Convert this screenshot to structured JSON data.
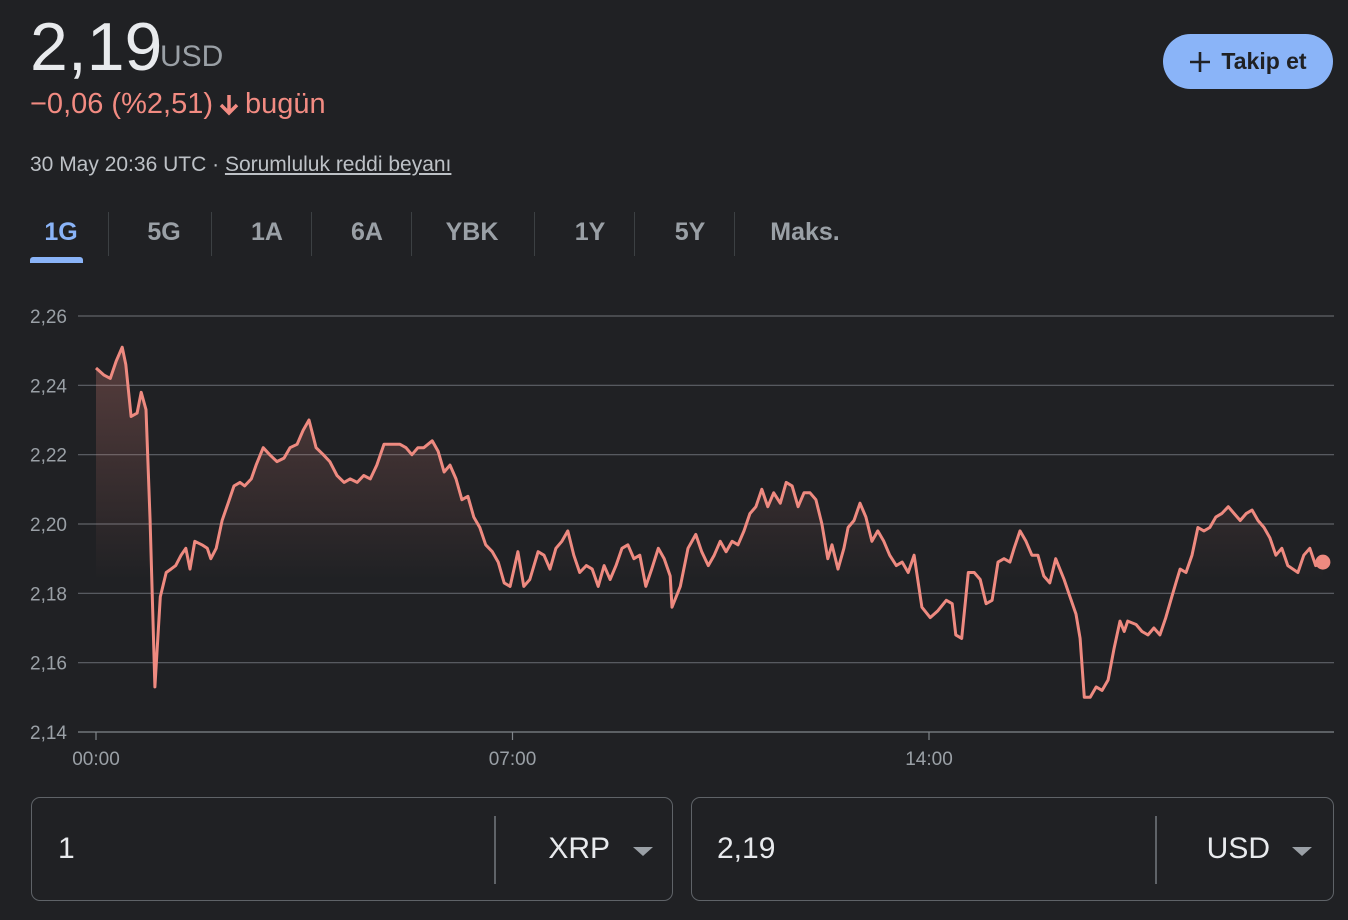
{
  "header": {
    "price": "2,19",
    "currency": "USD",
    "change": "−0,06 (%2,51)",
    "change_period": "bugün",
    "timestamp": "30 May 20:36 UTC",
    "separator": "·",
    "disclaimer": "Sorumluluk reddi beyanı",
    "follow_button": "Takip et"
  },
  "tabs": [
    "1G",
    "5G",
    "1A",
    "6A",
    "YBK",
    "1Y",
    "5Y",
    "Maks."
  ],
  "chart_data": {
    "type": "line",
    "color": "#ee8a80",
    "grid": true,
    "xlim": [
      0,
      20.8
    ],
    "ylim": [
      2.14,
      2.26
    ],
    "xticks": [
      {
        "value": 0,
        "label": "00:00"
      },
      {
        "value": 7,
        "label": "07:00"
      },
      {
        "value": 14,
        "label": "14:00"
      }
    ],
    "yticks": [
      {
        "value": 2.14,
        "label": "2,14"
      },
      {
        "value": 2.16,
        "label": "2,16"
      },
      {
        "value": 2.18,
        "label": "2,18"
      },
      {
        "value": 2.2,
        "label": "2,20"
      },
      {
        "value": 2.22,
        "label": "2,22"
      },
      {
        "value": 2.24,
        "label": "2,24"
      },
      {
        "value": 2.26,
        "label": "2,26"
      }
    ],
    "x": [
      0,
      0.13,
      0.24,
      0.34,
      0.44,
      0.5,
      0.59,
      0.69,
      0.76,
      0.84,
      0.91,
      0.99,
      1.08,
      1.18,
      1.26,
      1.34,
      1.43,
      1.51,
      1.58,
      1.66,
      1.78,
      1.87,
      1.93,
      2.02,
      2.12,
      2.22,
      2.32,
      2.42,
      2.5,
      2.61,
      2.69,
      2.81,
      2.92,
      3.04,
      3.16,
      3.26,
      3.38,
      3.48,
      3.58,
      3.7,
      3.82,
      3.93,
      4.05,
      4.17,
      4.27,
      4.39,
      4.5,
      4.61,
      4.72,
      4.84,
      4.96,
      5.11,
      5.21,
      5.31,
      5.41,
      5.51,
      5.65,
      5.75,
      5.85,
      5.95,
      6.05,
      6.15,
      6.25,
      6.35,
      6.45,
      6.55,
      6.66,
      6.76,
      6.86,
      6.96,
      7.09,
      7.19,
      7.29,
      7.43,
      7.53,
      7.63,
      7.73,
      7.83,
      7.93,
      8.03,
      8.13,
      8.24,
      8.34,
      8.44,
      8.54,
      8.64,
      8.74,
      8.84,
      8.94,
      9.04,
      9.14,
      9.24,
      9.34,
      9.45,
      9.55,
      9.65,
      9.68,
      9.82,
      9.95,
      10.08,
      10.18,
      10.29,
      10.39,
      10.49,
      10.59,
      10.69,
      10.79,
      10.89,
      10.99,
      11.09,
      11.19,
      11.29,
      11.39,
      11.5,
      11.6,
      11.7,
      11.8,
      11.9,
      12.0,
      12.1,
      12.2,
      12.3,
      12.37,
      12.47,
      12.57,
      12.64,
      12.74,
      12.84,
      12.94,
      13.04,
      13.14,
      13.24,
      13.34,
      13.45,
      13.55,
      13.65,
      13.75,
      13.88,
      14.02,
      14.15,
      14.29,
      14.39,
      14.45,
      14.55,
      14.66,
      14.76,
      14.86,
      14.96,
      15.06,
      15.16,
      15.26,
      15.36,
      15.43,
      15.53,
      15.63,
      15.73,
      15.83,
      15.93,
      16.03,
      16.13,
      16.27,
      16.37,
      16.47,
      16.54,
      16.61,
      16.71,
      16.81,
      16.91,
      17.01,
      17.11,
      17.21,
      17.28,
      17.34,
      17.48,
      17.58,
      17.68,
      17.78,
      17.88,
      17.98,
      18.08,
      18.15,
      18.22,
      18.32,
      18.42,
      18.52,
      18.62,
      18.72,
      18.82,
      18.92,
      19.03,
      19.13,
      19.23,
      19.33,
      19.43,
      19.53,
      19.63,
      19.73,
      19.83,
      19.93,
      20.03,
      20.2,
      20.3,
      20.4,
      20.5,
      20.62
    ],
    "values": [
      2.245,
      2.243,
      2.242,
      2.247,
      2.251,
      2.246,
      2.231,
      2.232,
      2.238,
      2.233,
      2.201,
      2.153,
      2.179,
      2.186,
      2.187,
      2.188,
      2.191,
      2.193,
      2.187,
      2.195,
      2.194,
      2.193,
      2.19,
      2.193,
      2.201,
      2.206,
      2.211,
      2.212,
      2.211,
      2.213,
      2.217,
      2.222,
      2.22,
      2.218,
      2.219,
      2.222,
      2.223,
      2.227,
      2.23,
      2.222,
      2.22,
      2.218,
      2.214,
      2.212,
      2.213,
      2.212,
      2.214,
      2.213,
      2.217,
      2.223,
      2.223,
      2.223,
      2.222,
      2.22,
      2.222,
      2.222,
      2.224,
      2.221,
      2.215,
      2.217,
      2.213,
      2.207,
      2.208,
      2.202,
      2.199,
      2.194,
      2.192,
      2.189,
      2.183,
      2.182,
      2.192,
      2.182,
      2.184,
      2.192,
      2.191,
      2.187,
      2.193,
      2.195,
      2.198,
      2.191,
      2.186,
      2.188,
      2.187,
      2.182,
      2.188,
      2.184,
      2.188,
      2.193,
      2.194,
      2.19,
      2.191,
      2.182,
      2.187,
      2.193,
      2.19,
      2.185,
      2.176,
      2.182,
      2.193,
      2.197,
      2.192,
      2.188,
      2.191,
      2.195,
      2.192,
      2.195,
      2.194,
      2.198,
      2.203,
      2.205,
      2.21,
      2.205,
      2.209,
      2.206,
      2.212,
      2.211,
      2.205,
      2.209,
      2.209,
      2.207,
      2.2,
      2.19,
      2.194,
      2.187,
      2.193,
      2.199,
      2.201,
      2.206,
      2.202,
      2.195,
      2.198,
      2.195,
      2.191,
      2.188,
      2.189,
      2.186,
      2.191,
      2.176,
      2.173,
      2.175,
      2.178,
      2.177,
      2.168,
      2.167,
      2.186,
      2.186,
      2.184,
      2.177,
      2.178,
      2.189,
      2.19,
      2.189,
      2.193,
      2.198,
      2.195,
      2.191,
      2.191,
      2.185,
      2.183,
      2.19,
      2.184,
      2.179,
      2.174,
      2.167,
      2.15,
      2.15,
      2.153,
      2.152,
      2.155,
      2.164,
      2.172,
      2.169,
      2.172,
      2.171,
      2.169,
      2.168,
      2.17,
      2.168,
      2.173,
      2.179,
      2.183,
      2.187,
      2.186,
      2.191,
      2.199,
      2.198,
      2.199,
      2.202,
      2.203,
      2.205,
      2.203,
      2.201,
      2.203,
      2.204,
      2.201,
      2.199,
      2.196,
      2.191,
      2.193,
      2.188,
      2.186,
      2.191,
      2.193,
      2.188,
      2.189
    ]
  },
  "converter": {
    "from_amount": "1",
    "from_currency": "XRP",
    "to_amount": "2,19",
    "to_currency": "USD"
  }
}
